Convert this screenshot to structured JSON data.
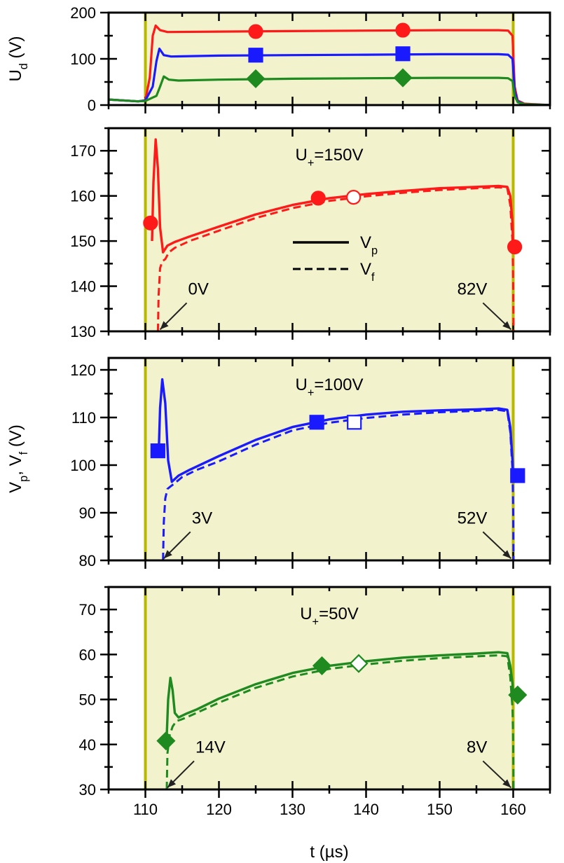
{
  "figure": {
    "xlabel": "t (µs)",
    "shared_ylabel": "Vp, Vf (V)",
    "x_ticks": [
      "110",
      "120",
      "130",
      "140",
      "150",
      "160"
    ]
  },
  "colors": {
    "red": "#ff1a1a",
    "blue": "#1a1aff",
    "green": "#1f8a1f",
    "shade": "#f2f2cc",
    "vline": "#b8b800"
  },
  "chart_data": [
    {
      "type": "line",
      "ylabel": "Ud (V)",
      "xlim": [
        105,
        165
      ],
      "ylim": [
        0,
        200
      ],
      "y_ticks": [
        "0",
        "100",
        "200"
      ],
      "pulse_window": [
        110,
        160
      ],
      "series": [
        {
          "color": "red",
          "marker": "circle",
          "x": [
            105,
            109,
            110,
            110.6,
            111.0,
            111.4,
            112,
            113,
            120,
            130,
            140,
            150,
            158,
            159.3,
            159.9,
            160.2,
            160.6,
            161.5,
            165
          ],
          "y": [
            12,
            8,
            10,
            60,
            150,
            172,
            162,
            158,
            159,
            160,
            161,
            162,
            162,
            161,
            150,
            40,
            10,
            3,
            0
          ],
          "marker_x": [
            125,
            145
          ],
          "marker_y": [
            159,
            162
          ]
        },
        {
          "color": "blue",
          "marker": "square",
          "x": [
            105,
            109,
            110,
            111.0,
            111.5,
            111.9,
            112.5,
            113.5,
            120,
            130,
            140,
            150,
            158,
            159.3,
            159.9,
            160.2,
            160.6,
            161.5,
            165
          ],
          "y": [
            12,
            8,
            10,
            40,
            95,
            122,
            108,
            105,
            107,
            108,
            109,
            110,
            110,
            109,
            100,
            30,
            8,
            2,
            0
          ],
          "marker_x": [
            125,
            145
          ],
          "marker_y": [
            108,
            111
          ]
        },
        {
          "color": "green",
          "marker": "diamond",
          "x": [
            105,
            109,
            110,
            111.5,
            112.0,
            112.5,
            113.2,
            114.5,
            120,
            130,
            140,
            150,
            158,
            159.3,
            159.9,
            160.2,
            160.6,
            161.5,
            165
          ],
          "y": [
            12,
            8,
            9,
            20,
            40,
            62,
            55,
            53,
            55,
            57,
            58,
            59,
            59,
            58,
            52,
            20,
            6,
            2,
            0
          ],
          "marker_x": [
            125,
            145
          ],
          "marker_y": [
            57,
            59
          ]
        }
      ]
    },
    {
      "type": "line",
      "annotation": "U+=150V",
      "xlim": [
        105,
        165
      ],
      "ylim": [
        130,
        175
      ],
      "y_ticks": [
        "130",
        "140",
        "150",
        "160",
        "170"
      ],
      "legend": {
        "solid": "Vp",
        "dashed": "Vf"
      },
      "color": "red",
      "marker": "circle",
      "vp": {
        "x": [
          110.9,
          111.1,
          111.4,
          111.7,
          112.0,
          112.4,
          113,
          114,
          116,
          120,
          125,
          130,
          135,
          140,
          145,
          150,
          155,
          158,
          159.2,
          159.6,
          159.9,
          160
        ],
        "y": [
          150,
          163,
          172.5,
          166,
          153,
          147.5,
          149,
          149.8,
          151,
          153.2,
          155.9,
          158.0,
          159.5,
          160.4,
          161.1,
          161.7,
          162.0,
          162.2,
          162.0,
          160,
          154,
          148
        ]
      },
      "vf": {
        "x": [
          111.7,
          111.8,
          112.0,
          112.3,
          112.7,
          113.2,
          114,
          116,
          120,
          125,
          130,
          135,
          140,
          145,
          150,
          155,
          158,
          159.2,
          159.6,
          159.9,
          160,
          160.05
        ],
        "y": [
          130,
          138,
          144,
          145.5,
          146,
          147.5,
          148.5,
          150,
          152.3,
          155.1,
          157.3,
          158.9,
          159.9,
          160.7,
          161.3,
          161.7,
          161.9,
          161.7,
          158,
          150,
          140,
          130
        ]
      },
      "markers": [
        {
          "x": 110.7,
          "y": 154,
          "filled": true
        },
        {
          "x": 133.5,
          "y": 159.5,
          "filled": true
        },
        {
          "x": 138.3,
          "y": 159.7,
          "filled": false
        },
        {
          "x": 160.2,
          "y": 148.7,
          "filled": true
        }
      ],
      "arrows": [
        {
          "label": "0V",
          "x": 112.0,
          "y": 130.4
        },
        {
          "label": "82V",
          "x": 159.7,
          "y": 130.4
        }
      ]
    },
    {
      "type": "line",
      "annotation": "U+=100V",
      "xlim": [
        105,
        165
      ],
      "ylim": [
        80,
        122.5
      ],
      "y_ticks": [
        "80",
        "90",
        "100",
        "110",
        "120"
      ],
      "color": "blue",
      "marker": "square",
      "vp": {
        "x": [
          111.8,
          112.0,
          112.3,
          112.7,
          113.1,
          113.6,
          114.5,
          116,
          120,
          125,
          130,
          135,
          140,
          145,
          150,
          155,
          158,
          159.2,
          159.6,
          159.9,
          160
        ],
        "y": [
          102,
          112,
          118,
          113,
          101,
          96.5,
          97.8,
          99,
          101.9,
          105.3,
          108.0,
          109.6,
          110.6,
          111.2,
          111.5,
          111.7,
          111.9,
          111.6,
          108,
          101,
          97
        ]
      },
      "vf": {
        "x": [
          112.4,
          112.5,
          112.7,
          113.0,
          113.4,
          114.0,
          115,
          117,
          120,
          125,
          130,
          135,
          140,
          145,
          150,
          155,
          158,
          159.2,
          159.6,
          159.9,
          160,
          160.05
        ],
        "y": [
          80,
          88,
          93,
          95,
          95.5,
          96.2,
          97.5,
          99,
          100.8,
          104.3,
          107.3,
          108.9,
          109.9,
          110.6,
          111.1,
          111.4,
          111.6,
          111.3,
          107,
          99,
          90,
          80
        ]
      },
      "markers": [
        {
          "x": 111.7,
          "y": 103,
          "filled": true
        },
        {
          "x": 133.3,
          "y": 109,
          "filled": true
        },
        {
          "x": 138.4,
          "y": 109,
          "filled": false
        },
        {
          "x": 160.6,
          "y": 97.8,
          "filled": true
        }
      ],
      "arrows": [
        {
          "label": "3V",
          "x": 112.5,
          "y": 80.4
        },
        {
          "label": "52V",
          "x": 159.7,
          "y": 80.4
        }
      ]
    },
    {
      "type": "line",
      "annotation": "U+=50V",
      "xlim": [
        105,
        165
      ],
      "ylim": [
        30,
        75
      ],
      "y_ticks": [
        "30",
        "40",
        "50",
        "60",
        "70"
      ],
      "color": "green",
      "marker": "diamond",
      "vp": {
        "x": [
          112.9,
          113.1,
          113.4,
          113.7,
          114.0,
          114.5,
          115.5,
          117,
          120,
          125,
          130,
          135,
          140,
          145,
          150,
          155,
          158,
          159.2,
          159.6,
          159.9,
          160
        ],
        "y": [
          42,
          50,
          54.8,
          52,
          47,
          46,
          46.8,
          47.8,
          50.2,
          53.4,
          55.9,
          57.5,
          58.5,
          59.3,
          59.8,
          60.2,
          60.5,
          60.3,
          57.5,
          53.5,
          51
        ]
      },
      "vf": {
        "x": [
          112.9,
          113.0,
          113.3,
          113.7,
          114.2,
          114.8,
          116,
          118,
          120,
          125,
          130,
          135,
          140,
          145,
          150,
          155,
          158,
          159.2,
          159.6,
          159.9,
          160,
          160.05
        ],
        "y": [
          30,
          38,
          42,
          44,
          45.2,
          45.5,
          46.3,
          47.8,
          49.3,
          52.6,
          55.1,
          56.8,
          57.8,
          58.6,
          59.2,
          59.6,
          59.8,
          59.6,
          55,
          48,
          40,
          30
        ]
      },
      "markers": [
        {
          "x": 112.8,
          "y": 40.8,
          "filled": true
        },
        {
          "x": 134.0,
          "y": 57.5,
          "filled": true
        },
        {
          "x": 139.0,
          "y": 58.0,
          "filled": false
        },
        {
          "x": 160.6,
          "y": 51,
          "filled": true
        }
      ],
      "arrows": [
        {
          "label": "14V",
          "x": 113.0,
          "y": 30.4
        },
        {
          "label": "8V",
          "x": 159.7,
          "y": 30.4
        }
      ]
    }
  ]
}
